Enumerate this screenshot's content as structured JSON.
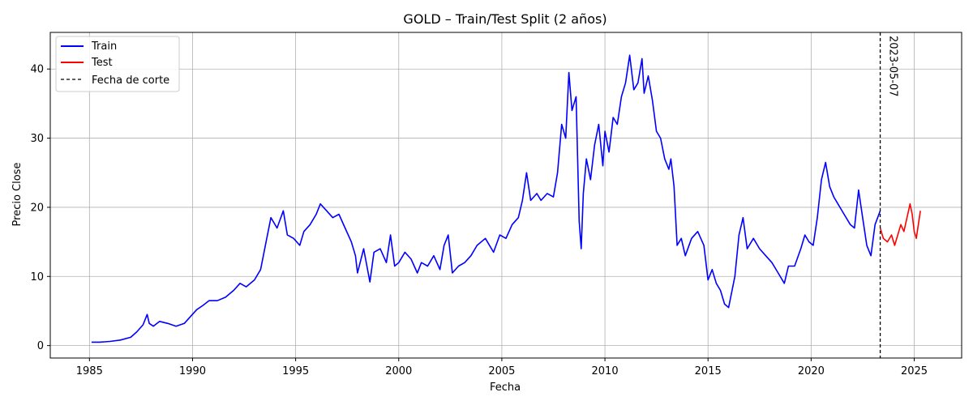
{
  "chart_data": {
    "type": "line",
    "title": "GOLD – Train/Test Split (2 años)",
    "xlabel": "Fecha",
    "ylabel": "Precio Close",
    "xlim": [
      1983.1,
      2027.3
    ],
    "ylim": [
      -1.8,
      45.3
    ],
    "xticks": [
      1985,
      1990,
      1995,
      2000,
      2005,
      2010,
      2015,
      2020,
      2025
    ],
    "yticks": [
      0,
      10,
      20,
      30,
      40
    ],
    "grid": true,
    "legend_position": "top-left",
    "cutoff": {
      "x": 2023.35,
      "label": "2023-05-07",
      "color": "#000000"
    },
    "series": [
      {
        "name": "Train",
        "color": "#0000ff",
        "points": [
          [
            1985.1,
            0.5
          ],
          [
            1985.5,
            0.5
          ],
          [
            1986.0,
            0.6
          ],
          [
            1986.5,
            0.8
          ],
          [
            1987.0,
            1.2
          ],
          [
            1987.3,
            2.0
          ],
          [
            1987.6,
            3.0
          ],
          [
            1987.8,
            4.5
          ],
          [
            1987.9,
            3.2
          ],
          [
            1988.1,
            2.8
          ],
          [
            1988.4,
            3.5
          ],
          [
            1988.8,
            3.2
          ],
          [
            1989.2,
            2.8
          ],
          [
            1989.6,
            3.2
          ],
          [
            1989.9,
            4.2
          ],
          [
            1990.2,
            5.2
          ],
          [
            1990.5,
            5.8
          ],
          [
            1990.8,
            6.5
          ],
          [
            1991.2,
            6.5
          ],
          [
            1991.6,
            7.0
          ],
          [
            1992.0,
            8.0
          ],
          [
            1992.3,
            9.0
          ],
          [
            1992.6,
            8.5
          ],
          [
            1993.0,
            9.5
          ],
          [
            1993.3,
            11.0
          ],
          [
            1993.6,
            15.5
          ],
          [
            1993.8,
            18.5
          ],
          [
            1994.1,
            17.0
          ],
          [
            1994.4,
            19.5
          ],
          [
            1994.6,
            16.0
          ],
          [
            1994.9,
            15.5
          ],
          [
            1995.2,
            14.5
          ],
          [
            1995.4,
            16.5
          ],
          [
            1995.7,
            17.5
          ],
          [
            1996.0,
            19.0
          ],
          [
            1996.2,
            20.5
          ],
          [
            1996.5,
            19.5
          ],
          [
            1996.8,
            18.5
          ],
          [
            1997.1,
            19.0
          ],
          [
            1997.4,
            17.0
          ],
          [
            1997.7,
            15.0
          ],
          [
            1997.9,
            13.0
          ],
          [
            1998.0,
            10.5
          ],
          [
            1998.3,
            14.0
          ],
          [
            1998.6,
            9.2
          ],
          [
            1998.8,
            13.5
          ],
          [
            1999.1,
            14.0
          ],
          [
            1999.4,
            12.0
          ],
          [
            1999.6,
            16.0
          ],
          [
            1999.8,
            11.5
          ],
          [
            2000.0,
            12.0
          ],
          [
            2000.3,
            13.5
          ],
          [
            2000.6,
            12.5
          ],
          [
            2000.9,
            10.5
          ],
          [
            2001.1,
            12.0
          ],
          [
            2001.4,
            11.5
          ],
          [
            2001.7,
            13.0
          ],
          [
            2002.0,
            11.0
          ],
          [
            2002.2,
            14.5
          ],
          [
            2002.4,
            16.0
          ],
          [
            2002.6,
            10.5
          ],
          [
            2002.9,
            11.5
          ],
          [
            2003.2,
            12.0
          ],
          [
            2003.5,
            13.0
          ],
          [
            2003.8,
            14.5
          ],
          [
            2004.2,
            15.5
          ],
          [
            2004.6,
            13.5
          ],
          [
            2004.9,
            16.0
          ],
          [
            2005.2,
            15.5
          ],
          [
            2005.5,
            17.5
          ],
          [
            2005.8,
            18.5
          ],
          [
            2006.0,
            21.0
          ],
          [
            2006.2,
            25.0
          ],
          [
            2006.4,
            21.0
          ],
          [
            2006.7,
            22.0
          ],
          [
            2006.9,
            21.0
          ],
          [
            2007.2,
            22.0
          ],
          [
            2007.5,
            21.5
          ],
          [
            2007.7,
            25.0
          ],
          [
            2007.9,
            32.0
          ],
          [
            2008.1,
            30.0
          ],
          [
            2008.25,
            39.5
          ],
          [
            2008.4,
            34.0
          ],
          [
            2008.6,
            36.0
          ],
          [
            2008.75,
            18.0
          ],
          [
            2008.85,
            14.0
          ],
          [
            2008.95,
            22.0
          ],
          [
            2009.1,
            27.0
          ],
          [
            2009.3,
            24.0
          ],
          [
            2009.5,
            29.0
          ],
          [
            2009.7,
            32.0
          ],
          [
            2009.9,
            26.0
          ],
          [
            2010.0,
            31.0
          ],
          [
            2010.2,
            28.0
          ],
          [
            2010.4,
            33.0
          ],
          [
            2010.6,
            32.0
          ],
          [
            2010.8,
            36.0
          ],
          [
            2011.0,
            38.0
          ],
          [
            2011.2,
            42.0
          ],
          [
            2011.4,
            37.0
          ],
          [
            2011.6,
            38.0
          ],
          [
            2011.8,
            41.5
          ],
          [
            2011.9,
            36.5
          ],
          [
            2012.1,
            39.0
          ],
          [
            2012.3,
            35.5
          ],
          [
            2012.5,
            31.0
          ],
          [
            2012.7,
            30.0
          ],
          [
            2012.9,
            27.0
          ],
          [
            2013.1,
            25.5
          ],
          [
            2013.2,
            27.0
          ],
          [
            2013.35,
            23.0
          ],
          [
            2013.5,
            14.5
          ],
          [
            2013.7,
            15.5
          ],
          [
            2013.9,
            13.0
          ],
          [
            2014.2,
            15.5
          ],
          [
            2014.5,
            16.5
          ],
          [
            2014.8,
            14.5
          ],
          [
            2015.0,
            9.5
          ],
          [
            2015.2,
            11.0
          ],
          [
            2015.4,
            9.0
          ],
          [
            2015.6,
            8.0
          ],
          [
            2015.8,
            6.0
          ],
          [
            2016.0,
            5.5
          ],
          [
            2016.3,
            10.0
          ],
          [
            2016.5,
            16.0
          ],
          [
            2016.7,
            18.5
          ],
          [
            2016.9,
            14.0
          ],
          [
            2017.2,
            15.5
          ],
          [
            2017.5,
            14.0
          ],
          [
            2017.8,
            13.0
          ],
          [
            2018.1,
            12.0
          ],
          [
            2018.4,
            10.5
          ],
          [
            2018.7,
            9.0
          ],
          [
            2018.9,
            11.5
          ],
          [
            2019.2,
            11.5
          ],
          [
            2019.5,
            14.0
          ],
          [
            2019.7,
            16.0
          ],
          [
            2019.9,
            15.0
          ],
          [
            2020.1,
            14.5
          ],
          [
            2020.3,
            18.5
          ],
          [
            2020.5,
            24.0
          ],
          [
            2020.7,
            26.5
          ],
          [
            2020.9,
            23.0
          ],
          [
            2021.1,
            21.5
          ],
          [
            2021.3,
            20.5
          ],
          [
            2021.6,
            19.0
          ],
          [
            2021.9,
            17.5
          ],
          [
            2022.1,
            17.0
          ],
          [
            2022.3,
            22.5
          ],
          [
            2022.5,
            18.5
          ],
          [
            2022.7,
            14.5
          ],
          [
            2022.9,
            13.0
          ],
          [
            2023.1,
            17.5
          ],
          [
            2023.35,
            19.5
          ]
        ]
      },
      {
        "name": "Test",
        "color": "#ff0000",
        "points": [
          [
            2023.35,
            17.0
          ],
          [
            2023.5,
            15.5
          ],
          [
            2023.7,
            15.0
          ],
          [
            2023.9,
            16.0
          ],
          [
            2024.05,
            14.5
          ],
          [
            2024.2,
            16.0
          ],
          [
            2024.35,
            17.5
          ],
          [
            2024.5,
            16.5
          ],
          [
            2024.65,
            18.5
          ],
          [
            2024.8,
            20.5
          ],
          [
            2024.9,
            19.0
          ],
          [
            2025.0,
            16.5
          ],
          [
            2025.1,
            15.5
          ],
          [
            2025.2,
            17.5
          ],
          [
            2025.3,
            19.5
          ]
        ]
      }
    ],
    "legend": [
      {
        "label": "Train",
        "style": "solid",
        "color": "#0000ff"
      },
      {
        "label": "Test",
        "style": "solid",
        "color": "#ff0000"
      },
      {
        "label": "Fecha de corte",
        "style": "dashed",
        "color": "#000000"
      }
    ]
  }
}
